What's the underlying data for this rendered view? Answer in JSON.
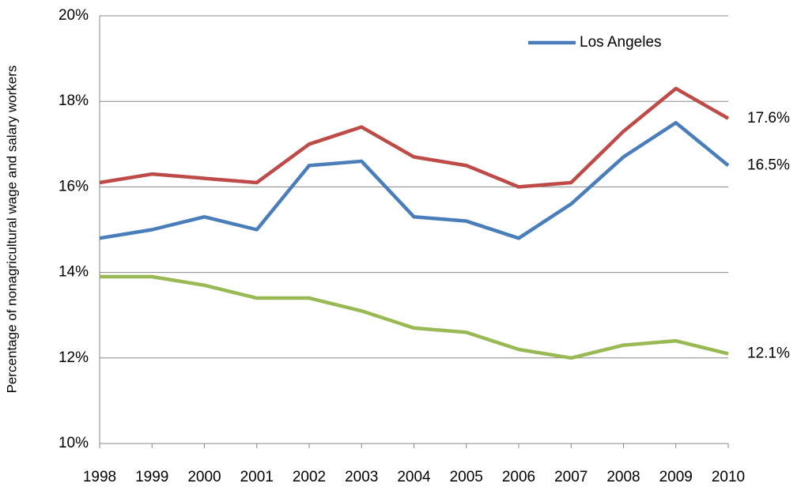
{
  "chart_data": {
    "type": "line",
    "y_label": "Percentage of nonagricultural wage and salary workers",
    "categories": [
      "1998",
      "1999",
      "2000",
      "2001",
      "2002",
      "2003",
      "2004",
      "2005",
      "2006",
      "2007",
      "2008",
      "2009",
      "2010"
    ],
    "series": [
      {
        "color": "#be4b48",
        "values": [
          16.1,
          16.3,
          16.2,
          16.1,
          17.0,
          17.4,
          16.7,
          16.5,
          16.0,
          16.1,
          17.3,
          18.3,
          17.6
        ],
        "value_labels": [
          null,
          null,
          null,
          null,
          null,
          null,
          null,
          null,
          null,
          null,
          null,
          null,
          "17.6%"
        ]
      },
      {
        "name": "Los Angeles",
        "color": "#4a7ebb",
        "values": [
          14.8,
          15.0,
          15.3,
          15.0,
          16.5,
          16.6,
          15.3,
          15.2,
          14.8,
          15.6,
          16.7,
          17.5,
          16.5
        ],
        "value_labels": [
          null,
          null,
          null,
          null,
          null,
          null,
          null,
          null,
          null,
          null,
          null,
          null,
          "16.5%"
        ]
      },
      {
        "color": "#98b954",
        "values": [
          13.9,
          13.9,
          13.7,
          13.4,
          13.4,
          13.1,
          12.7,
          12.6,
          12.2,
          12.0,
          12.3,
          12.4,
          12.1
        ],
        "value_labels": [
          null,
          null,
          null,
          null,
          null,
          null,
          null,
          null,
          null,
          null,
          null,
          null,
          "12.1%"
        ]
      }
    ],
    "ylim": [
      10,
      20
    ],
    "yticks": [
      {
        "value": 10,
        "label": "10%"
      },
      {
        "value": 12,
        "label": "12%"
      },
      {
        "value": 14,
        "label": "14%"
      },
      {
        "value": 16,
        "label": "16%"
      },
      {
        "value": 18,
        "label": "18%"
      },
      {
        "value": 20,
        "label": "20%"
      }
    ],
    "grid": true,
    "legend": "upper right"
  }
}
